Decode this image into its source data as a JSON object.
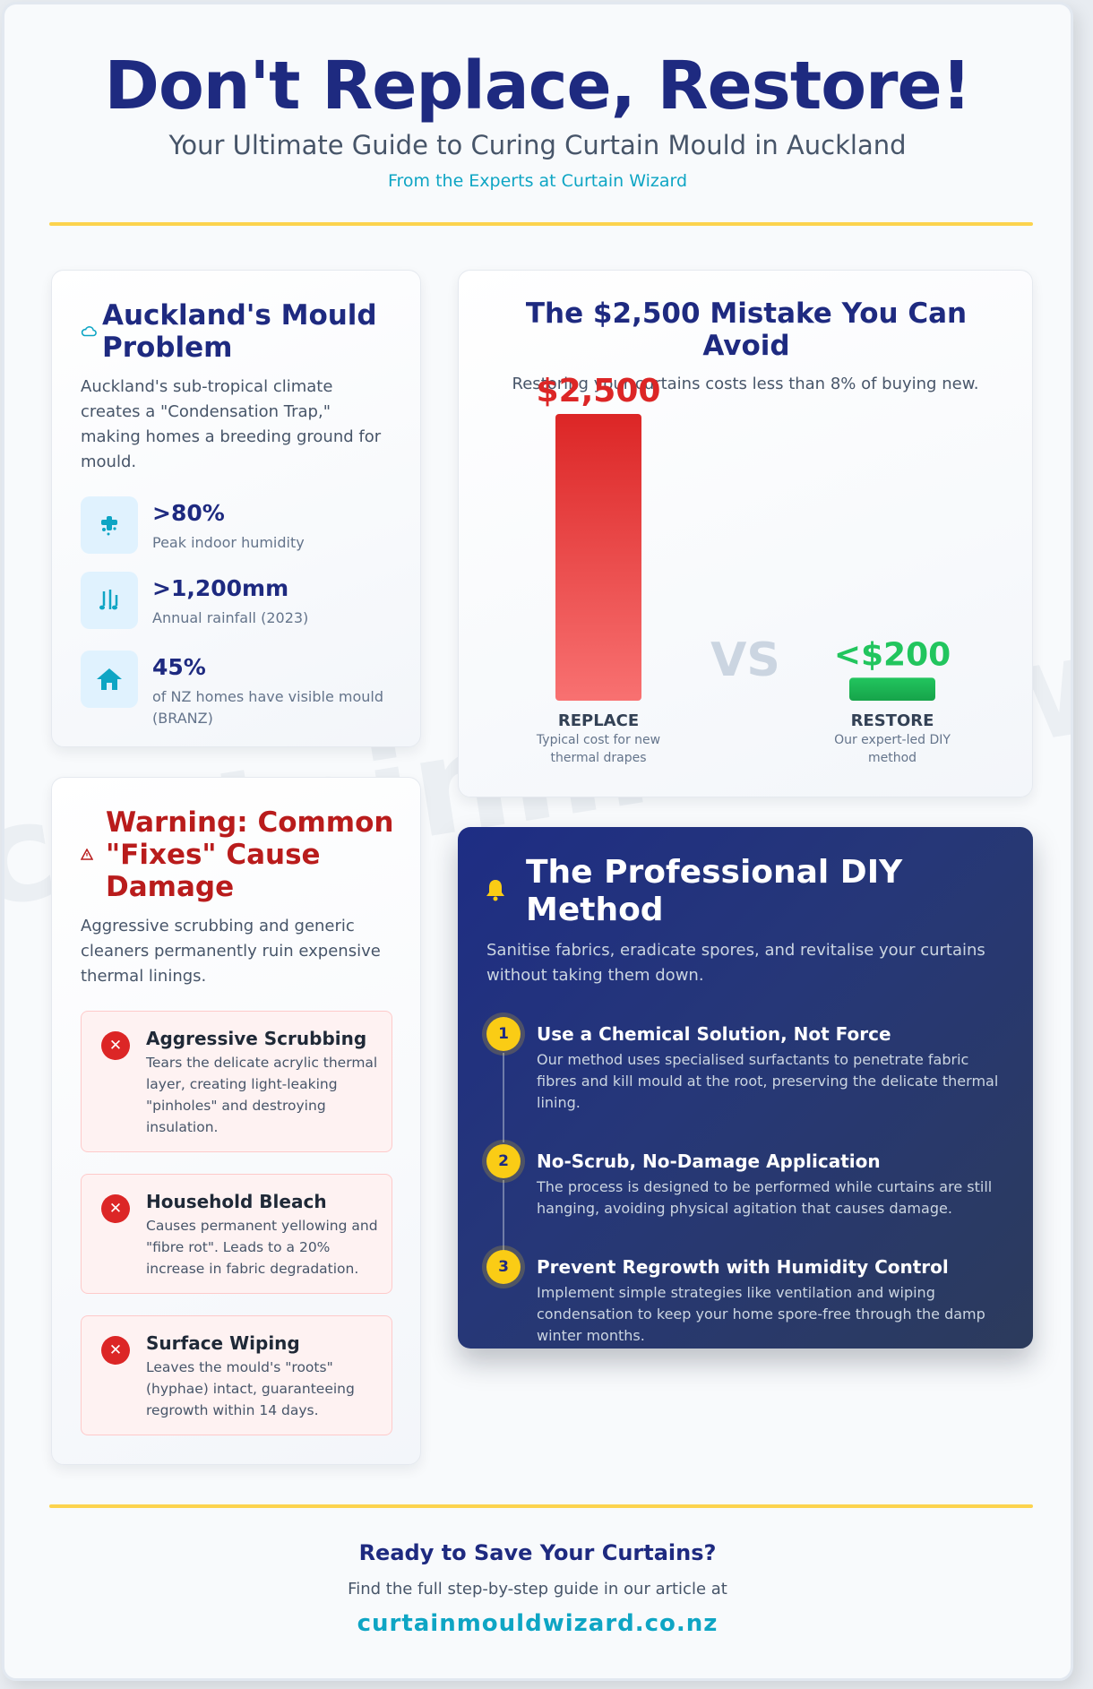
{
  "header": {
    "title": "Don't Replace, Restore!",
    "subtitle": "Your Ultimate Guide to Curing Curtain Mould in Auckland",
    "byline": "From the Experts at Curtain Wizard"
  },
  "watermark": "curtainmouldwizard.co.nz",
  "mould_problem": {
    "title": "Auckland's Mould Problem",
    "icon": "cloud-icon",
    "description": "Auckland's sub-tropical climate creates a \"Condensation Trap,\" making homes a breeding ground for mould.",
    "stats": [
      {
        "icon": "humidity-icon",
        "value": ">80%",
        "label": "Peak indoor humidity"
      },
      {
        "icon": "rain-icon",
        "value": ">1,200mm",
        "label": "Annual rainfall (2023)"
      },
      {
        "icon": "home-icon",
        "value": "45%",
        "label": "of NZ homes have visible mould (BRANZ)"
      }
    ]
  },
  "cost": {
    "title": "The $2,500 Mistake You Can Avoid",
    "description": "Restoring your curtains costs less than 8% of buying new.",
    "vs_label": "VS",
    "colors": {
      "replace": "#dc2626",
      "restore": "#22c55e"
    }
  },
  "chart_data": {
    "type": "bar",
    "categories": [
      "REPLACE",
      "RESTORE"
    ],
    "values": [
      2500,
      200
    ],
    "value_labels": [
      "$2,500",
      "<$200"
    ],
    "sublabels": [
      "Typical cost for new thermal drapes",
      "Our expert-led DIY method"
    ],
    "ylim": [
      0,
      2500
    ]
  },
  "warning": {
    "title": "Warning: Common \"Fixes\" Cause Damage",
    "icon": "warning-icon",
    "description": "Aggressive scrubbing and generic cleaners permanently ruin expensive thermal linings.",
    "items": [
      {
        "title": "Aggressive Scrubbing",
        "text": "Tears the delicate acrylic thermal layer, creating light-leaking \"pinholes\" and destroying insulation."
      },
      {
        "title": "Household Bleach",
        "text": "Causes permanent yellowing and \"fibre rot\". Leads to a 20% increase in fabric degradation."
      },
      {
        "title": "Surface Wiping",
        "text": "Leaves the mould's \"roots\" (hyphae) intact, guaranteeing regrowth within 14 days."
      }
    ]
  },
  "method": {
    "title": "The Professional DIY Method",
    "icon": "bell-icon",
    "description": "Sanitise fabrics, eradicate spores, and revitalise your curtains without taking them down.",
    "steps": [
      {
        "num": "1",
        "title": "Use a Chemical Solution, Not Force",
        "text": "Our method uses specialised surfactants to penetrate fabric fibres and kill mould at the root, preserving the delicate thermal lining."
      },
      {
        "num": "2",
        "title": "No-Scrub, No-Damage Application",
        "text": "The process is designed to be performed while curtains are still hanging, avoiding physical agitation that causes damage."
      },
      {
        "num": "3",
        "title": "Prevent Regrowth with Humidity Control",
        "text": "Implement simple strategies like ventilation and wiping condensation to keep your home spore-free through the damp winter months."
      }
    ]
  },
  "footer": {
    "title": "Ready to Save Your Curtains?",
    "subtitle": "Find the full step-by-step guide in our article at",
    "url": "curtainmouldwizard.co.nz"
  }
}
